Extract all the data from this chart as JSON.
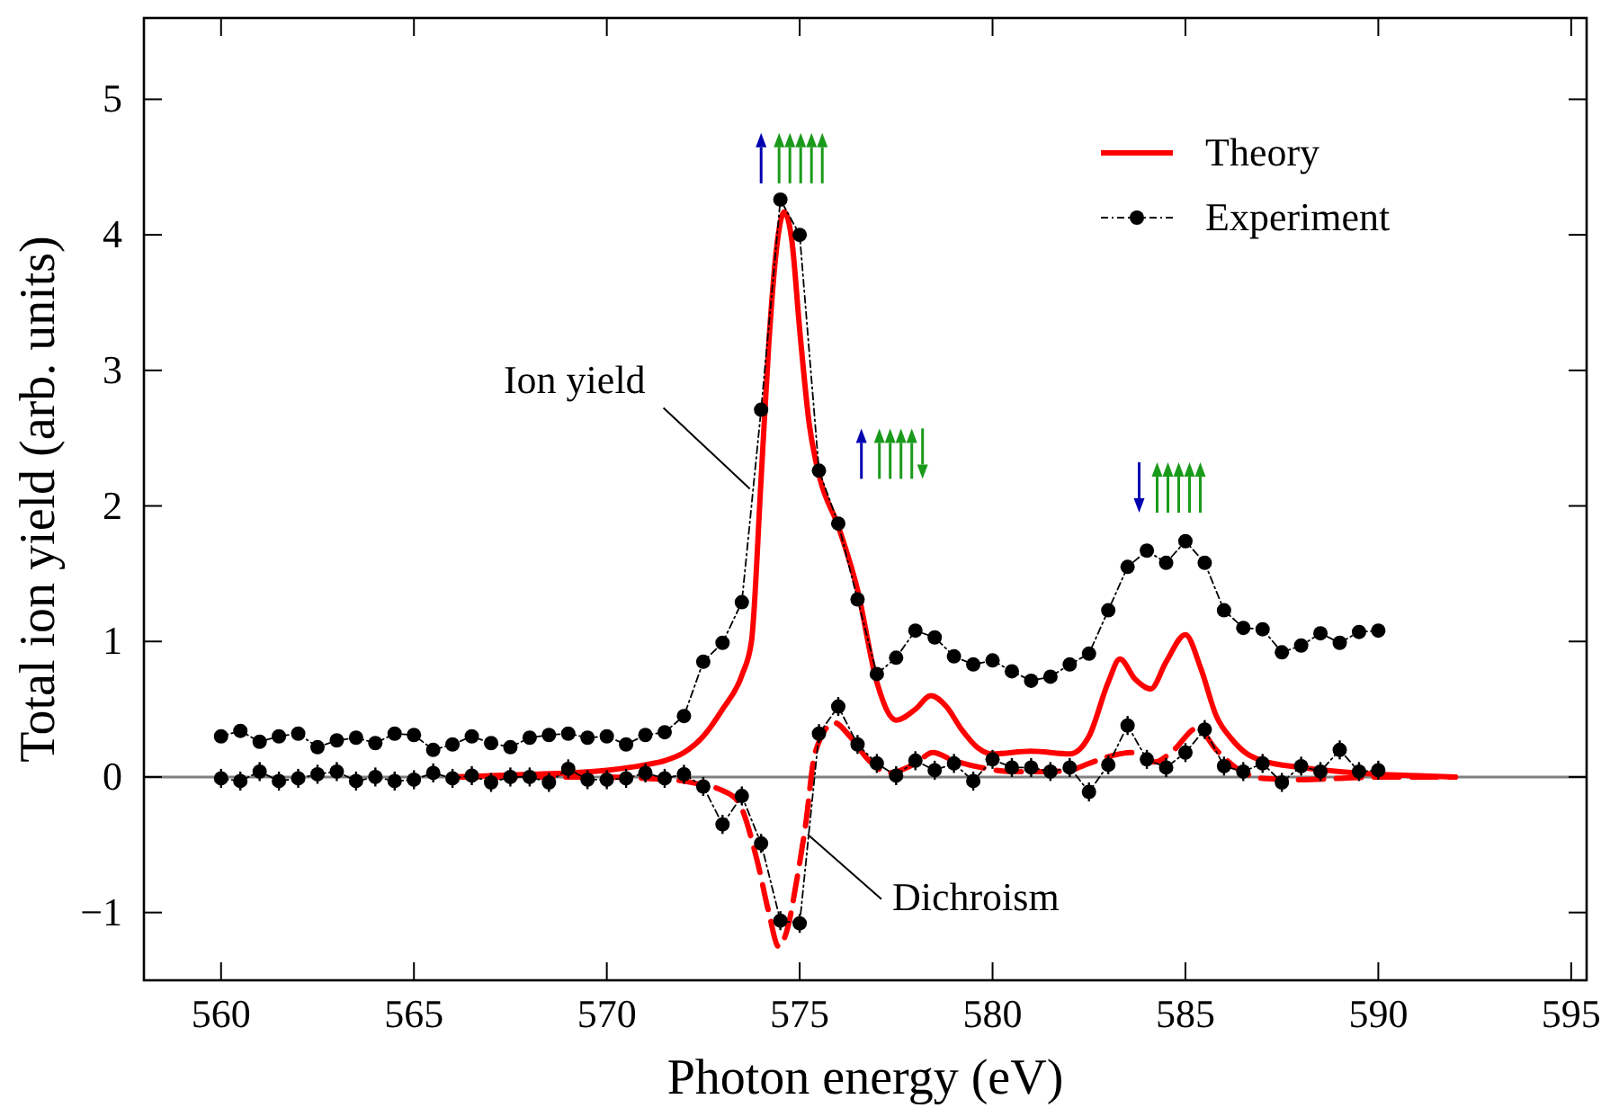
{
  "chart_data": {
    "type": "line",
    "xlabel": "Photon energy (eV)",
    "ylabel": "Total ion yield (arb. units)",
    "xlim": [
      558,
      595.4
    ],
    "ylim": [
      -1.5,
      5.6
    ],
    "xticks": [
      560,
      565,
      570,
      575,
      580,
      585,
      590,
      595
    ],
    "yticks": [
      {
        "value": -1,
        "label": "−1"
      },
      0,
      1,
      2,
      3,
      4,
      5
    ],
    "legend": "top right",
    "grid": false,
    "ref_lines": [
      {
        "axis": "y",
        "value": 0,
        "color": "#808080"
      }
    ],
    "annotations": [
      {
        "text": "Ion yield",
        "x": 573.8,
        "y": 2.1
      },
      {
        "text": "Dichroism",
        "x": 575.3,
        "y": -0.45
      }
    ],
    "series": [
      {
        "name": "Theory",
        "color": "#ff0000",
        "line_style": "solid",
        "marker": "none",
        "x": [
          566,
          567,
          568,
          569,
          570,
          571,
          571.5,
          572,
          572.5,
          573,
          573.5,
          573.75,
          574,
          574.2,
          574.4,
          574.6,
          574.8,
          575,
          575.25,
          575.5,
          576,
          576.5,
          577,
          577.5,
          578,
          578.4,
          578.8,
          579.2,
          579.6,
          580,
          581,
          582,
          582.5,
          583,
          583.3,
          583.7,
          584.1,
          584.5,
          585,
          585.4,
          585.8,
          586.2,
          586.6,
          587,
          588,
          589,
          590,
          591,
          592
        ],
        "values": [
          0,
          0.01,
          0.02,
          0.03,
          0.05,
          0.09,
          0.12,
          0.18,
          0.3,
          0.5,
          0.75,
          1.0,
          2.2,
          3.2,
          3.9,
          4.17,
          3.95,
          3.3,
          2.6,
          2.23,
          1.85,
          1.38,
          0.7,
          0.42,
          0.5,
          0.6,
          0.52,
          0.35,
          0.22,
          0.17,
          0.19,
          0.17,
          0.3,
          0.7,
          0.87,
          0.72,
          0.65,
          0.85,
          1.05,
          0.8,
          0.45,
          0.28,
          0.17,
          0.12,
          0.07,
          0.04,
          0.02,
          0.01,
          0
        ]
      },
      {
        "color": "#ff0000",
        "line_style": "dashed",
        "marker": "none",
        "x": [
          566,
          570,
          571,
          572,
          572.5,
          573,
          573.4,
          573.9,
          574.2,
          574.45,
          574.7,
          574.9,
          575.15,
          575.4,
          575.9,
          576.3,
          576.8,
          577.3,
          578,
          578.45,
          579,
          579.7,
          580.5,
          581.5,
          582,
          582.5,
          583,
          583.6,
          584.2,
          584.7,
          585.3,
          585.8,
          586.3,
          587,
          588,
          589,
          590,
          592
        ],
        "values": [
          0,
          0,
          -0.01,
          -0.03,
          -0.06,
          -0.1,
          -0.18,
          -0.62,
          -1.0,
          -1.25,
          -1.1,
          -0.8,
          -0.36,
          0.18,
          0.4,
          0.3,
          0.12,
          0.03,
          0.1,
          0.18,
          0.12,
          0.07,
          0.04,
          0.04,
          0.05,
          0.1,
          0.15,
          0.18,
          0.11,
          0.2,
          0.36,
          0.2,
          0.07,
          -0.01,
          -0.02,
          -0.01,
          0,
          0
        ]
      },
      {
        "name": "Experiment",
        "color": "#000000",
        "line_style": "dotted",
        "marker": "circle",
        "x": [
          560,
          560.5,
          561,
          561.5,
          562,
          562.5,
          563,
          563.5,
          564,
          564.5,
          565,
          565.5,
          566,
          566.5,
          567,
          567.5,
          568,
          568.5,
          569,
          569.5,
          570,
          570.5,
          571,
          571.5,
          572,
          572.5,
          573,
          573.5,
          574,
          574.5,
          575,
          575.5,
          576,
          576.5,
          577,
          577.5,
          578,
          578.5,
          579,
          579.5,
          580,
          580.5,
          581,
          581.5,
          582,
          582.5,
          583,
          583.5,
          584,
          584.5,
          585,
          585.5,
          586,
          586.5,
          587,
          587.5,
          588,
          588.5,
          589,
          589.5,
          590
        ],
        "values": [
          0.3,
          0.34,
          0.26,
          0.3,
          0.32,
          0.22,
          0.27,
          0.29,
          0.25,
          0.32,
          0.31,
          0.2,
          0.24,
          0.3,
          0.25,
          0.22,
          0.29,
          0.31,
          0.32,
          0.29,
          0.3,
          0.24,
          0.31,
          0.33,
          0.45,
          0.85,
          0.99,
          1.29,
          2.71,
          4.26,
          4.0,
          2.26,
          1.87,
          1.31,
          0.76,
          0.88,
          1.08,
          1.03,
          0.89,
          0.83,
          0.86,
          0.78,
          0.71,
          0.74,
          0.83,
          0.91,
          1.23,
          1.55,
          1.67,
          1.58,
          1.74,
          1.58,
          1.23,
          1.1,
          1.09,
          0.92,
          0.97,
          1.06,
          0.99,
          1.07,
          1.08
        ]
      },
      {
        "color": "#000000",
        "line_style": "dotted",
        "marker": "circle",
        "x": [
          560,
          560.5,
          561,
          561.5,
          562,
          562.5,
          563,
          563.5,
          564,
          564.5,
          565,
          565.5,
          566,
          566.5,
          567,
          567.5,
          568,
          568.5,
          569,
          569.5,
          570,
          570.5,
          571,
          571.5,
          572,
          572.5,
          573,
          573.5,
          574,
          574.5,
          575,
          575.5,
          576,
          576.5,
          577,
          577.5,
          578,
          578.5,
          579,
          579.5,
          580,
          580.5,
          581,
          581.5,
          582,
          582.5,
          583,
          583.5,
          584,
          584.5,
          585,
          585.5,
          586,
          586.5,
          587,
          587.5,
          588,
          588.5,
          589,
          589.5,
          590
        ],
        "values": [
          -0.01,
          -0.03,
          0.04,
          -0.03,
          -0.01,
          0.02,
          0.04,
          -0.03,
          0,
          -0.03,
          -0.02,
          0.03,
          -0.01,
          0.01,
          -0.04,
          0,
          0,
          -0.04,
          0.06,
          -0.02,
          -0.02,
          -0.01,
          0.03,
          -0.01,
          0.02,
          -0.07,
          -0.35,
          -0.14,
          -0.49,
          -1.06,
          -1.08,
          0.32,
          0.52,
          0.24,
          0.1,
          0.01,
          0.12,
          0.05,
          0.1,
          -0.03,
          0.13,
          0.07,
          0.07,
          0.04,
          0.07,
          -0.11,
          0.09,
          0.38,
          0.13,
          0.07,
          0.18,
          0.35,
          0.08,
          0.04,
          0.1,
          -0.04,
          0.08,
          0.04,
          0.2,
          0.04,
          0.05
        ],
        "errors": [
          0.07,
          0.07,
          0.07,
          0.07,
          0.07,
          0.07,
          0.07,
          0.07,
          0.07,
          0.07,
          0.07,
          0.07,
          0.07,
          0.07,
          0.07,
          0.07,
          0.07,
          0.07,
          0.07,
          0.07,
          0.07,
          0.07,
          0.07,
          0.07,
          0.07,
          0.07,
          0.07,
          0.07,
          0.07,
          0.07,
          0.07,
          0.07,
          0.07,
          0.07,
          0.07,
          0.07,
          0.07,
          0.07,
          0.07,
          0.07,
          0.07,
          0.07,
          0.07,
          0.07,
          0.07,
          0.07,
          0.07,
          0.07,
          0.07,
          0.07,
          0.07,
          0.07,
          0.07,
          0.07,
          0.07,
          0.07,
          0.07,
          0.07,
          0.07,
          0.07,
          0.07
        ]
      }
    ]
  }
}
